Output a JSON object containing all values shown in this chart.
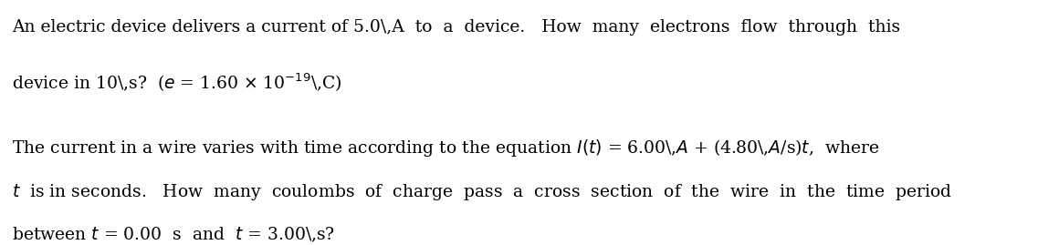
{
  "background_color": "#ffffff",
  "figsize": [
    11.37,
    2.69
  ],
  "dpi": 100,
  "line1_q1": "An electric device delivers a current of 5.0\\,A  to  a  device.   How  many  electrons  flow  through  this",
  "line2_q1": "device in 10\\,s?  ($e$ = 1.60 \\times 10$^{-19}$\\,C)",
  "line1_q2": "The current in a wire varies with time according to the equation $I(t)$ = 6.00\\,$A$ + (4.80\\,$A$/s)$t$,  where",
  "line2_q2": "$t$  is in seconds.   How  many  coulombs  of  charge  pass  a  cross  section  of  the  wire  in  the  time  period",
  "line3_q2": "between $t$ = 0.00  s  and  $t$ = 3.00\\,s?",
  "text_color": "#000000",
  "fontsize": 13.5
}
